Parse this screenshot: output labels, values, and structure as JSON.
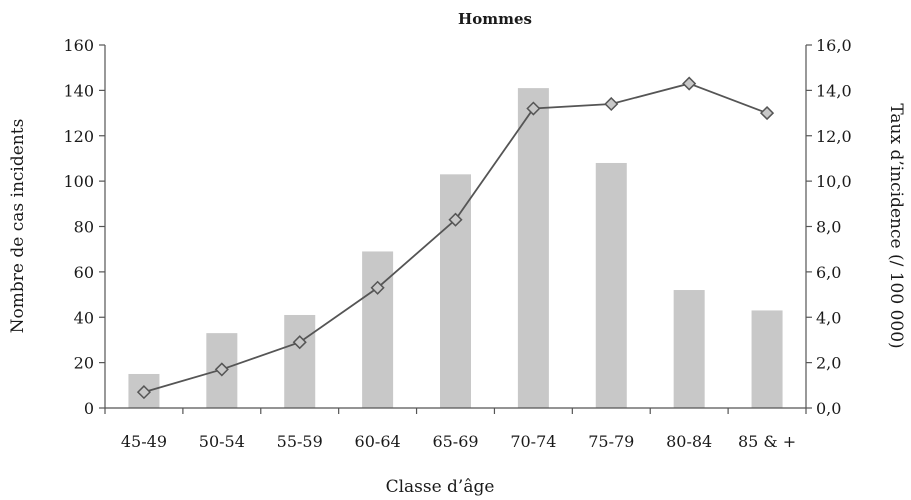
{
  "chart_data": {
    "type": "bar",
    "title": "Hommes",
    "xlabel": "Classe d’âge",
    "ylabel": "Nombre de cas incidents",
    "y2label": "Taux d’incidence (/ 100 000)",
    "categories": [
      "45-49",
      "50-54",
      "55-59",
      "60-64",
      "65-69",
      "70-74",
      "75-79",
      "80-84",
      "85 & +"
    ],
    "ylim": [
      0,
      160
    ],
    "y2lim": [
      0,
      16
    ],
    "yticks": [
      "0",
      "20",
      "40",
      "60",
      "80",
      "100",
      "120",
      "140",
      "160"
    ],
    "y2ticks": [
      "0,0",
      "2,0",
      "4,0",
      "6,0",
      "8,0",
      "10,0",
      "12,0",
      "14,0",
      "16,0"
    ],
    "grid": false,
    "series": [
      {
        "type": "bar",
        "axis": "left",
        "color": "#c8c8c8",
        "values": [
          15,
          33,
          41,
          69,
          103,
          141,
          108,
          52,
          43
        ]
      },
      {
        "type": "line",
        "axis": "right",
        "color": "#555555",
        "marker": "diamond",
        "marker_fill": "#c8c8c8",
        "values": [
          0.7,
          1.7,
          2.9,
          5.3,
          8.3,
          13.2,
          13.4,
          14.3,
          13.0
        ]
      }
    ]
  }
}
